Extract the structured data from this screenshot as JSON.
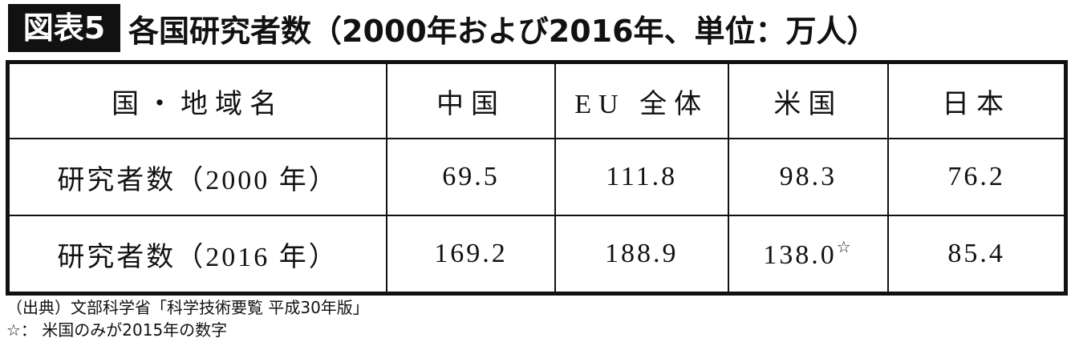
{
  "header": {
    "label": "図表5",
    "title": "各国研究者数（2000年および2016年、単位：万人）"
  },
  "table": {
    "columns": [
      "国・地域名",
      "中国",
      "EU 全体",
      "米国",
      "日本"
    ],
    "rows": [
      [
        "研究者数（2000 年）",
        "69.5",
        "111.8",
        "98.3",
        "76.2"
      ],
      [
        "研究者数（2016 年）",
        "169.2",
        "188.9",
        {
          "text": "138.0",
          "mark": "☆"
        },
        "85.4"
      ]
    ]
  },
  "notes": [
    "（出典）文部科学省「科学技術要覧 平成30年版」",
    "☆： 米国のみが2015年の数字"
  ]
}
